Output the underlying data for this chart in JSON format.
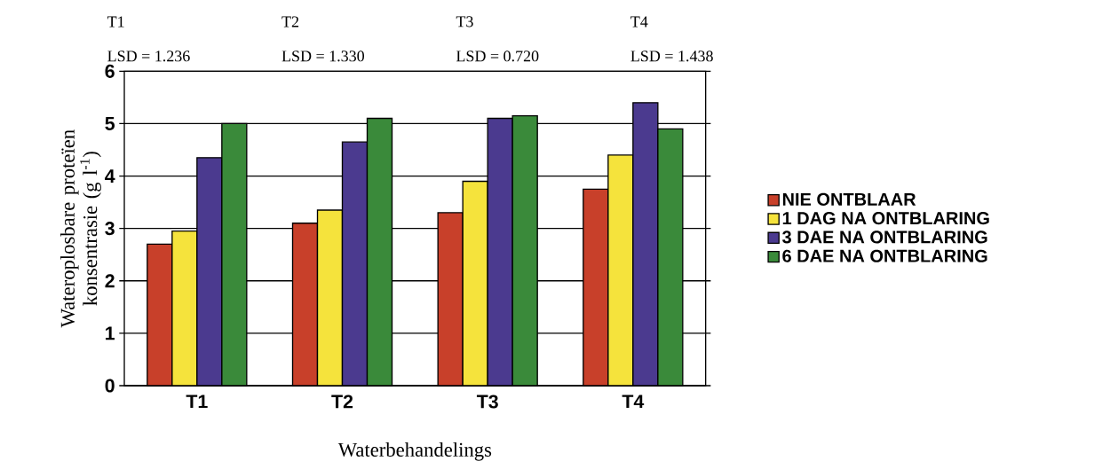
{
  "chart_data": {
    "type": "bar",
    "categories": [
      "T1",
      "T2",
      "T3",
      "T4"
    ],
    "series": [
      {
        "name": "NIE ONTBLAAR",
        "color": "#c8402a",
        "values": [
          2.7,
          3.1,
          3.3,
          3.75
        ]
      },
      {
        "name": "1 DAG NA ONTBLARING",
        "color": "#f5e33c",
        "values": [
          2.95,
          3.35,
          3.9,
          4.4
        ]
      },
      {
        "name": "3 DAE NA ONTBLARING",
        "color": "#4b3a8f",
        "values": [
          4.35,
          4.65,
          5.1,
          5.4
        ]
      },
      {
        "name": "6 DAE NA ONTBLARING",
        "color": "#3a8a3a",
        "values": [
          5.0,
          5.1,
          5.15,
          4.9
        ]
      }
    ],
    "xlabel": "Waterbehandelings",
    "ylabel": "Wateroplosbare proteïen konsentrasie (g l$^{-1}$)",
    "ylim": [
      0,
      6
    ],
    "yticks": [
      0,
      1,
      2,
      3,
      4,
      5,
      6
    ],
    "grid": "y",
    "legend": "right",
    "annotations": [
      "T1",
      "LSD = 1.236",
      "T2",
      "LSD = 1.330",
      "T3",
      "LSD = 0.720",
      "T4",
      "LSD = 1.438"
    ]
  }
}
